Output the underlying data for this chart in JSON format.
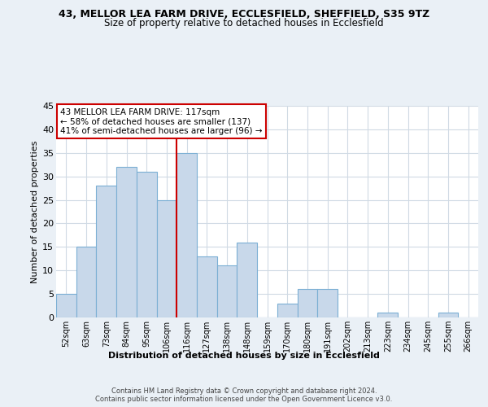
{
  "title_line1": "43, MELLOR LEA FARM DRIVE, ECCLESFIELD, SHEFFIELD, S35 9TZ",
  "title_line2": "Size of property relative to detached houses in Ecclesfield",
  "xlabel": "Distribution of detached houses by size in Ecclesfield",
  "ylabel": "Number of detached properties",
  "categories": [
    "52sqm",
    "63sqm",
    "73sqm",
    "84sqm",
    "95sqm",
    "106sqm",
    "116sqm",
    "127sqm",
    "138sqm",
    "148sqm",
    "159sqm",
    "170sqm",
    "180sqm",
    "191sqm",
    "202sqm",
    "213sqm",
    "223sqm",
    "234sqm",
    "245sqm",
    "255sqm",
    "266sqm"
  ],
  "values": [
    5,
    15,
    28,
    32,
    31,
    25,
    35,
    13,
    11,
    16,
    0,
    3,
    6,
    6,
    0,
    0,
    1,
    0,
    0,
    1,
    0
  ],
  "bar_color": "#c8d8ea",
  "bar_edge_color": "#7bafd4",
  "vline_x_index": 6,
  "vline_color": "#cc0000",
  "annotation_text": "43 MELLOR LEA FARM DRIVE: 117sqm\n← 58% of detached houses are smaller (137)\n41% of semi-detached houses are larger (96) →",
  "annotation_box_color": "#ffffff",
  "annotation_box_edge": "#cc0000",
  "ylim": [
    0,
    45
  ],
  "yticks": [
    0,
    5,
    10,
    15,
    20,
    25,
    30,
    35,
    40,
    45
  ],
  "footer_text": "Contains HM Land Registry data © Crown copyright and database right 2024.\nContains public sector information licensed under the Open Government Licence v3.0.",
  "bg_color": "#eaf0f6",
  "plot_bg_color": "#ffffff",
  "grid_color": "#d0dae4"
}
